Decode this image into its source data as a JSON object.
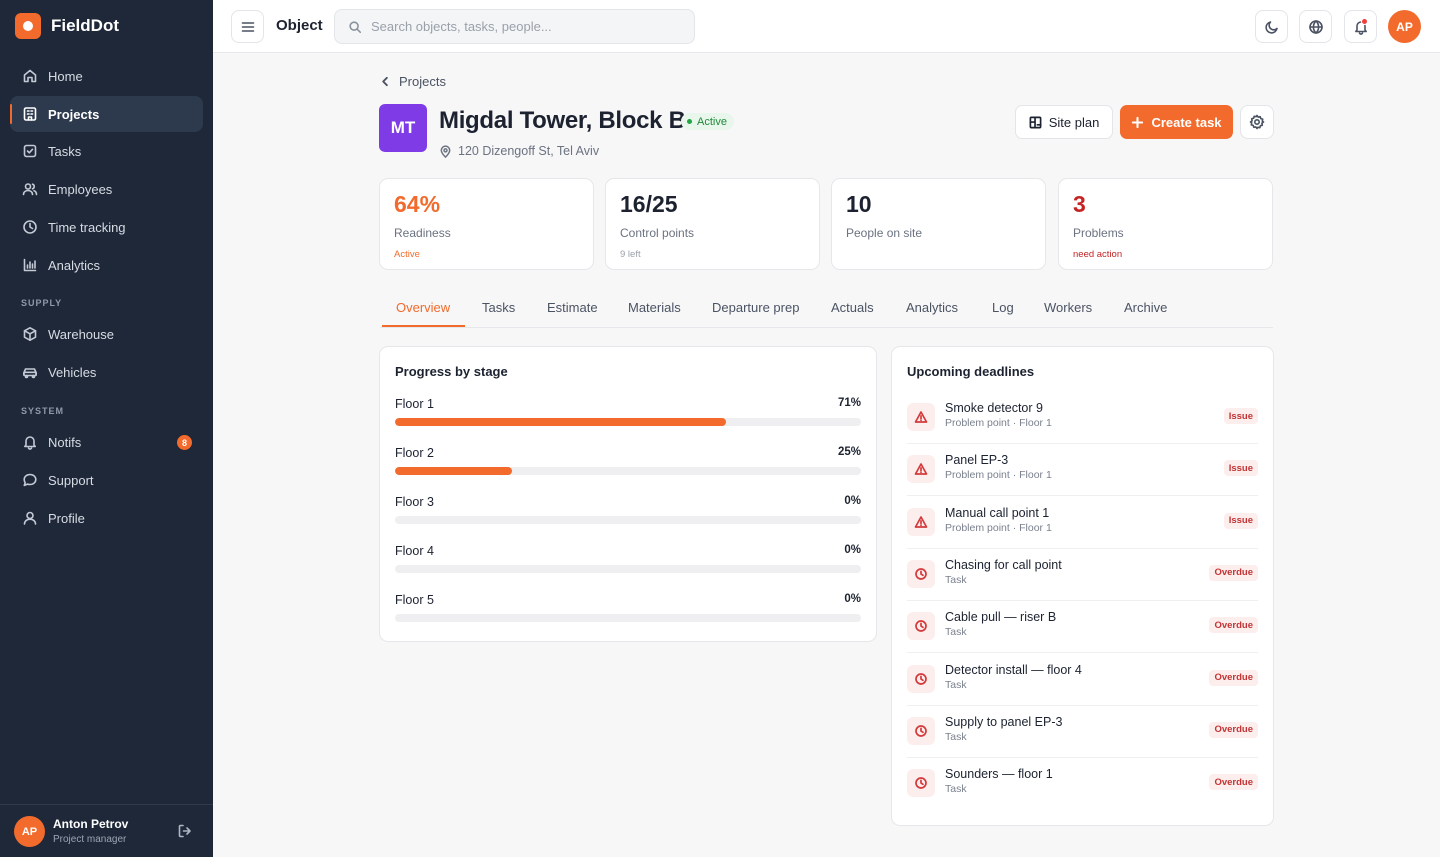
{
  "app": {
    "name": "FieldDot"
  },
  "sidebar": {
    "items": [
      {
        "label": "Home",
        "icon": "home-icon"
      },
      {
        "label": "Projects",
        "icon": "projects-icon",
        "active": true
      },
      {
        "label": "Tasks",
        "icon": "tasks-icon"
      },
      {
        "label": "Employees",
        "icon": "employees-icon"
      },
      {
        "label": "Time tracking",
        "icon": "clock-icon"
      },
      {
        "label": "Analytics",
        "icon": "analytics-icon"
      }
    ],
    "supply_section": "SUPPLY",
    "supply_items": [
      {
        "label": "Warehouse",
        "icon": "box-icon"
      },
      {
        "label": "Vehicles",
        "icon": "car-icon"
      }
    ],
    "system_section": "SYSTEM",
    "system_items": [
      {
        "label": "Notifs",
        "icon": "bell-icon",
        "badge": "8"
      },
      {
        "label": "Support",
        "icon": "chat-icon"
      },
      {
        "label": "Profile",
        "icon": "user-icon"
      }
    ],
    "user": {
      "initials": "AP",
      "name": "Anton Petrov",
      "role": "Project manager"
    }
  },
  "topbar": {
    "title": "Object",
    "search_placeholder": "Search objects, tasks, people...",
    "avatar_initials": "AP"
  },
  "breadcrumb": {
    "label": "Projects"
  },
  "project": {
    "initials": "MT",
    "name": "Migdal Tower, Block B",
    "status": "Active",
    "address": "120 Dizengoff St, Tel Aviv",
    "buttons": {
      "site_plan": "Site plan",
      "create_task": "Create task"
    }
  },
  "stats": [
    {
      "value": "64%",
      "label": "Readiness",
      "sub": "Active",
      "value_color": "#f26b2d",
      "sub_color": "#f26b2d"
    },
    {
      "value": "16/25",
      "label": "Control points",
      "sub": "9 left",
      "value_color": "#1c2230",
      "sub_color": "#9aa0aa"
    },
    {
      "value": "10",
      "label": "People on site",
      "sub": "",
      "value_color": "#1c2230",
      "sub_color": "#9aa0aa"
    },
    {
      "value": "3",
      "label": "Problems",
      "sub": "need action",
      "value_color": "#c42424",
      "sub_color": "#c42424"
    }
  ],
  "tabs": [
    "Overview",
    "Tasks",
    "Estimate",
    "Materials",
    "Departure prep",
    "Actuals",
    "Analytics",
    "Log",
    "Workers",
    "Archive"
  ],
  "progress": {
    "title": "Progress by stage",
    "stages": [
      {
        "name": "Floor 1",
        "pct_label": "71%",
        "value": 71
      },
      {
        "name": "Floor 2",
        "pct_label": "25%",
        "value": 25
      },
      {
        "name": "Floor 3",
        "pct_label": "0%",
        "value": 0
      },
      {
        "name": "Floor 4",
        "pct_label": "0%",
        "value": 0
      },
      {
        "name": "Floor 5",
        "pct_label": "0%",
        "value": 0
      }
    ]
  },
  "deadlines": {
    "title": "Upcoming deadlines",
    "items": [
      {
        "title": "Smoke detector 9",
        "sub": "Problem point · Floor 1",
        "badge": "Issue",
        "icon": "warning-icon"
      },
      {
        "title": "Panel EP-3",
        "sub": "Problem point · Floor 1",
        "badge": "Issue",
        "icon": "warning-icon"
      },
      {
        "title": "Manual call point 1",
        "sub": "Problem point · Floor 1",
        "badge": "Issue",
        "icon": "warning-icon"
      },
      {
        "title": "Chasing for call point",
        "sub": "Task",
        "badge": "Overdue",
        "icon": "clock-icon"
      },
      {
        "title": "Cable pull — riser B",
        "sub": "Task",
        "badge": "Overdue",
        "icon": "clock-icon"
      },
      {
        "title": "Detector install — floor 4",
        "sub": "Task",
        "badge": "Overdue",
        "icon": "clock-icon"
      },
      {
        "title": "Supply to panel EP-3",
        "sub": "Task",
        "badge": "Overdue",
        "icon": "clock-icon"
      },
      {
        "title": "Sounders — floor 1",
        "sub": "Task",
        "badge": "Overdue",
        "icon": "clock-icon"
      }
    ]
  },
  "colors": {
    "accent": "#f26b2d",
    "sidebar_bg": "#1e2838",
    "project_avatar": "#7f3ce6",
    "status_green": "#22a447",
    "danger": "#c42424"
  }
}
